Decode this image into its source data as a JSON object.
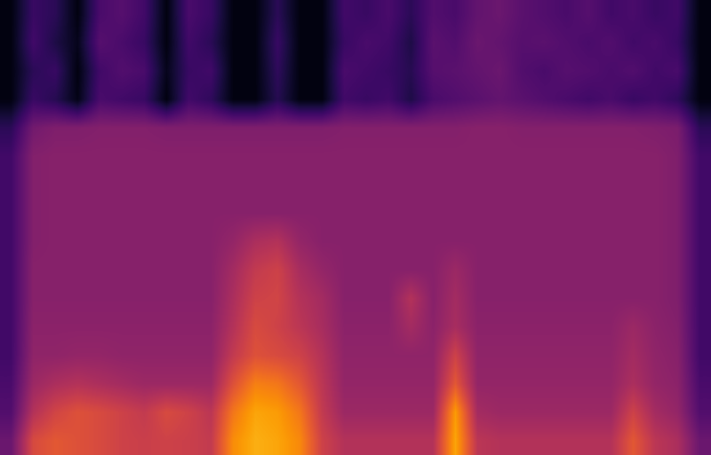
{
  "chart_data": {
    "type": "heatmap",
    "color": "inferno",
    "tick_labels": false,
    "zlim": [
      0,
      100
    ],
    "cells": [
      [
        3,
        18,
        15,
        3,
        22,
        25,
        20,
        3,
        22,
        18,
        3,
        3,
        15,
        3,
        3,
        20,
        18,
        22,
        15,
        24,
        22,
        28,
        30,
        26,
        24,
        22,
        25,
        20,
        22,
        18,
        20,
        3
      ],
      [
        3,
        20,
        12,
        5,
        25,
        22,
        18,
        3,
        20,
        15,
        3,
        3,
        18,
        3,
        3,
        18,
        22,
        20,
        12,
        26,
        24,
        30,
        28,
        25,
        26,
        24,
        22,
        24,
        20,
        22,
        18,
        3
      ],
      [
        3,
        15,
        18,
        3,
        20,
        24,
        22,
        5,
        18,
        20,
        3,
        3,
        16,
        3,
        3,
        22,
        20,
        18,
        14,
        25,
        26,
        28,
        30,
        24,
        22,
        25,
        24,
        22,
        24,
        20,
        22,
        3
      ],
      [
        3,
        18,
        14,
        4,
        22,
        20,
        18,
        3,
        20,
        16,
        3,
        3,
        14,
        3,
        3,
        20,
        18,
        20,
        12,
        22,
        24,
        26,
        28,
        26,
        24,
        22,
        20,
        22,
        18,
        20,
        16,
        3
      ],
      [
        15,
        32,
        35,
        35,
        36,
        36,
        36,
        35,
        35,
        35,
        35,
        35,
        35,
        35,
        35,
        36,
        36,
        36,
        36,
        36,
        36,
        37,
        37,
        36,
        36,
        36,
        36,
        36,
        36,
        35,
        34,
        15
      ],
      [
        20,
        36,
        37,
        37,
        37,
        37,
        37,
        37,
        37,
        37,
        37,
        37,
        37,
        37,
        37,
        37,
        37,
        37,
        37,
        37,
        37,
        37,
        37,
        37,
        37,
        37,
        37,
        37,
        37,
        37,
        35,
        20
      ],
      [
        20,
        36,
        37,
        37,
        37,
        37,
        37,
        37,
        37,
        37,
        37,
        37,
        37,
        37,
        37,
        37,
        37,
        37,
        37,
        37,
        37,
        37,
        37,
        37,
        37,
        37,
        37,
        37,
        37,
        37,
        35,
        20
      ],
      [
        20,
        36,
        37,
        37,
        37,
        37,
        37,
        37,
        37,
        37,
        37,
        37,
        37,
        37,
        37,
        37,
        37,
        37,
        37,
        37,
        37,
        37,
        37,
        37,
        37,
        37,
        37,
        37,
        37,
        37,
        35,
        20
      ],
      [
        20,
        36,
        37,
        37,
        37,
        37,
        37,
        37,
        37,
        37,
        40,
        46,
        48,
        40,
        37,
        37,
        37,
        37,
        37,
        37,
        37,
        37,
        37,
        37,
        37,
        37,
        37,
        37,
        37,
        37,
        35,
        20
      ],
      [
        20,
        37,
        37,
        37,
        37,
        37,
        37,
        37,
        37,
        37,
        44,
        52,
        55,
        45,
        40,
        37,
        37,
        37,
        37,
        37,
        42,
        37,
        37,
        37,
        37,
        37,
        37,
        37,
        37,
        37,
        35,
        20
      ],
      [
        20,
        37,
        37,
        37,
        37,
        37,
        37,
        37,
        37,
        37,
        46,
        55,
        56,
        48,
        44,
        37,
        37,
        37,
        48,
        37,
        44,
        37,
        37,
        37,
        37,
        37,
        37,
        37,
        37,
        37,
        35,
        20
      ],
      [
        20,
        38,
        38,
        38,
        38,
        38,
        38,
        38,
        38,
        38,
        48,
        58,
        55,
        50,
        45,
        38,
        38,
        38,
        44,
        38,
        45,
        38,
        38,
        38,
        38,
        38,
        38,
        38,
        42,
        38,
        36,
        20
      ],
      [
        20,
        39,
        39,
        40,
        40,
        39,
        39,
        39,
        39,
        39,
        52,
        60,
        58,
        55,
        48,
        39,
        39,
        39,
        39,
        39,
        55,
        39,
        39,
        39,
        39,
        39,
        39,
        39,
        44,
        39,
        37,
        20
      ],
      [
        22,
        42,
        46,
        48,
        46,
        44,
        42,
        42,
        42,
        42,
        60,
        72,
        70,
        62,
        50,
        40,
        40,
        40,
        40,
        40,
        62,
        40,
        40,
        40,
        40,
        40,
        40,
        40,
        46,
        40,
        38,
        22
      ],
      [
        24,
        48,
        56,
        60,
        58,
        55,
        52,
        58,
        55,
        50,
        70,
        80,
        78,
        70,
        52,
        42,
        42,
        42,
        42,
        42,
        78,
        44,
        42,
        42,
        42,
        42,
        42,
        42,
        55,
        44,
        40,
        24
      ],
      [
        30,
        58,
        62,
        60,
        58,
        55,
        54,
        55,
        54,
        52,
        75,
        82,
        80,
        74,
        55,
        48,
        48,
        48,
        48,
        48,
        80,
        50,
        48,
        48,
        48,
        48,
        48,
        48,
        62,
        50,
        46,
        30
      ]
    ]
  }
}
